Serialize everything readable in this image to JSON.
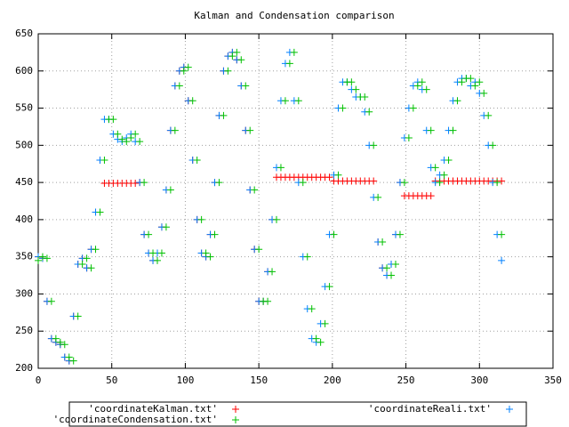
{
  "chart_data": {
    "type": "scatter",
    "title": "Kalman and Condensation comparison",
    "x": [
      0,
      3,
      6,
      9,
      12,
      15,
      18,
      21,
      24,
      27,
      30,
      33,
      36,
      39,
      42,
      45,
      48,
      51,
      54,
      57,
      60,
      63,
      66,
      69,
      72,
      75,
      78,
      81,
      84,
      87,
      90,
      93,
      96,
      99,
      102,
      105,
      108,
      111,
      114,
      117,
      120,
      123,
      126,
      129,
      132,
      135,
      138,
      141,
      144,
      147,
      150,
      153,
      156,
      159,
      162,
      165,
      168,
      171,
      174,
      177,
      180,
      183,
      186,
      189,
      192,
      195,
      198,
      201,
      204,
      207,
      210,
      213,
      216,
      219,
      222,
      225,
      228,
      231,
      234,
      237,
      240,
      243,
      246,
      249,
      252,
      255,
      258,
      261,
      264,
      267,
      270,
      273,
      276,
      279,
      282,
      285,
      288,
      291,
      294,
      297,
      300,
      303,
      306,
      309,
      312,
      315
    ],
    "series": [
      {
        "name": "'coordinateKalman.txt'",
        "color": "#ff0000",
        "values": [
          350,
          348,
          290,
          240,
          235,
          232,
          215,
          210,
          270,
          340,
          348,
          335,
          360,
          410,
          480,
          449,
          449,
          449,
          449,
          449,
          449,
          449,
          449,
          450,
          380,
          355,
          345,
          355,
          390,
          440,
          520,
          580,
          600,
          605,
          560,
          480,
          400,
          355,
          350,
          380,
          450,
          540,
          600,
          620,
          625,
          615,
          580,
          520,
          440,
          360,
          290,
          290,
          330,
          400,
          457,
          457,
          457,
          457,
          457,
          457,
          457,
          457,
          457,
          457,
          457,
          457,
          457,
          452,
          452,
          452,
          452,
          452,
          452,
          452,
          452,
          452,
          452,
          370,
          335,
          325,
          340,
          380,
          450,
          432,
          432,
          432,
          432,
          432,
          432,
          432,
          452,
          452,
          452,
          452,
          452,
          452,
          452,
          452,
          452,
          452,
          452,
          452,
          452,
          452,
          452,
          452
        ]
      },
      {
        "name": "'coordinateReali.txt'",
        "color": "#0080ff",
        "values": [
          350,
          348,
          290,
          240,
          235,
          232,
          215,
          210,
          270,
          340,
          348,
          335,
          360,
          410,
          480,
          535,
          535,
          515,
          508,
          505,
          510,
          515,
          505,
          450,
          380,
          355,
          345,
          355,
          390,
          440,
          520,
          580,
          600,
          605,
          560,
          480,
          400,
          355,
          350,
          380,
          450,
          540,
          600,
          620,
          625,
          615,
          580,
          520,
          440,
          360,
          290,
          290,
          330,
          400,
          470,
          560,
          610,
          625,
          560,
          450,
          350,
          280,
          240,
          235,
          260,
          310,
          380,
          460,
          550,
          585,
          585,
          575,
          565,
          565,
          545,
          500,
          430,
          370,
          335,
          325,
          340,
          380,
          450,
          510,
          550,
          580,
          585,
          575,
          520,
          470,
          450,
          460,
          480,
          520,
          560,
          585,
          590,
          590,
          580,
          585,
          570,
          540,
          500,
          450,
          380,
          345
        ]
      },
      {
        "name": "'coordinateCondensation.txt'",
        "color": "#00c000",
        "values": [
          345,
          350,
          348,
          290,
          240,
          235,
          232,
          215,
          210,
          270,
          340,
          348,
          335,
          360,
          410,
          480,
          535,
          535,
          515,
          508,
          505,
          510,
          515,
          505,
          450,
          380,
          355,
          345,
          355,
          390,
          440,
          520,
          580,
          600,
          605,
          560,
          480,
          400,
          355,
          350,
          380,
          450,
          540,
          600,
          620,
          625,
          615,
          580,
          520,
          440,
          360,
          290,
          290,
          330,
          400,
          470,
          560,
          610,
          625,
          560,
          450,
          350,
          280,
          240,
          235,
          260,
          310,
          380,
          460,
          550,
          585,
          585,
          575,
          565,
          565,
          545,
          500,
          430,
          370,
          335,
          325,
          340,
          380,
          450,
          510,
          550,
          580,
          585,
          575,
          520,
          470,
          450,
          460,
          480,
          520,
          560,
          585,
          590,
          590,
          580,
          585,
          570,
          540,
          500,
          450,
          380
        ]
      }
    ],
    "xlim": [
      0,
      350
    ],
    "ylim": [
      200,
      650
    ],
    "xticks": [
      0,
      50,
      100,
      150,
      200,
      250,
      300,
      350
    ],
    "yticks": [
      200,
      250,
      300,
      350,
      400,
      450,
      500,
      550,
      600,
      650
    ],
    "grid": true,
    "legend": "bottom"
  }
}
